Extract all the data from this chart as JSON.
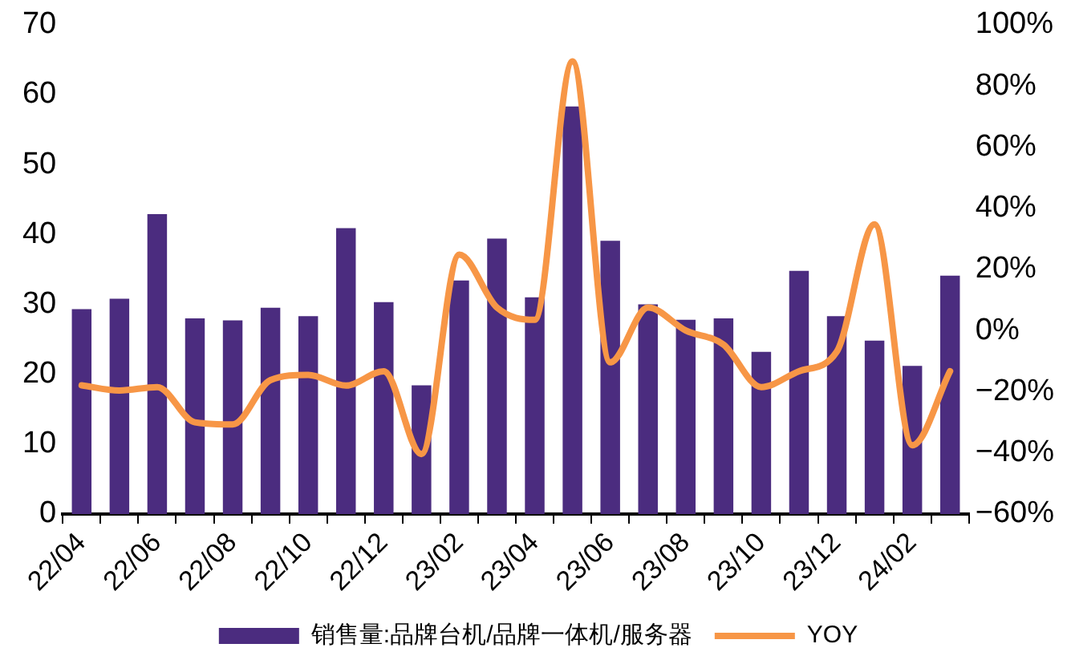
{
  "chart_data": {
    "type": "bar",
    "categories": [
      "22/04",
      null,
      "22/06",
      null,
      "22/08",
      null,
      "22/10",
      null,
      "22/12",
      null,
      "23/02",
      null,
      "23/04",
      null,
      "23/06",
      null,
      "23/08",
      null,
      "23/10",
      null,
      "23/12",
      null,
      "24/02",
      null
    ],
    "series": [
      {
        "name": "销售量:品牌台机/品牌一体机/服务器",
        "color": "#4b2c7f",
        "values": [
          29.3,
          30.8,
          42.9,
          28,
          27.7,
          29.5,
          28.3,
          40.9,
          30.3,
          18.4,
          33.4,
          39.4,
          31,
          58.3,
          39.1,
          30,
          27.8,
          28,
          23.2,
          34.8,
          28.3,
          24.8,
          21.2,
          34.1
        ]
      },
      {
        "name": "YOY",
        "type": "line",
        "axis": "y2",
        "color": "#f79646",
        "values": [
          -17.9,
          -19.6,
          -18.5,
          -30,
          -30.7,
          -16.2,
          -14.5,
          -18,
          -13.3,
          -40.4,
          24.8,
          7.5,
          3.5,
          88,
          -10.4,
          7.5,
          0,
          -4.6,
          -18.5,
          -13.3,
          -6.9,
          34.7,
          -37.5,
          -13.3
        ]
      }
    ],
    "ylim": [
      0,
      70
    ],
    "yticks": [
      0,
      10,
      20,
      30,
      40,
      50,
      60,
      70
    ],
    "y2lim": [
      -60,
      100
    ],
    "y2ticks": [
      {
        "value": -60,
        "label": "−60%"
      },
      {
        "value": -40,
        "label": "−40%"
      },
      {
        "value": -20,
        "label": "−20%"
      },
      {
        "value": 0,
        "label": "0%"
      },
      {
        "value": 20,
        "label": "20%"
      },
      {
        "value": 40,
        "label": "40%"
      },
      {
        "value": 60,
        "label": "60%"
      },
      {
        "value": 80,
        "label": "80%"
      },
      {
        "value": 100,
        "label": "100%"
      }
    ],
    "grid": false,
    "legend": "bottom",
    "marker": "none",
    "line_style": "solid"
  }
}
